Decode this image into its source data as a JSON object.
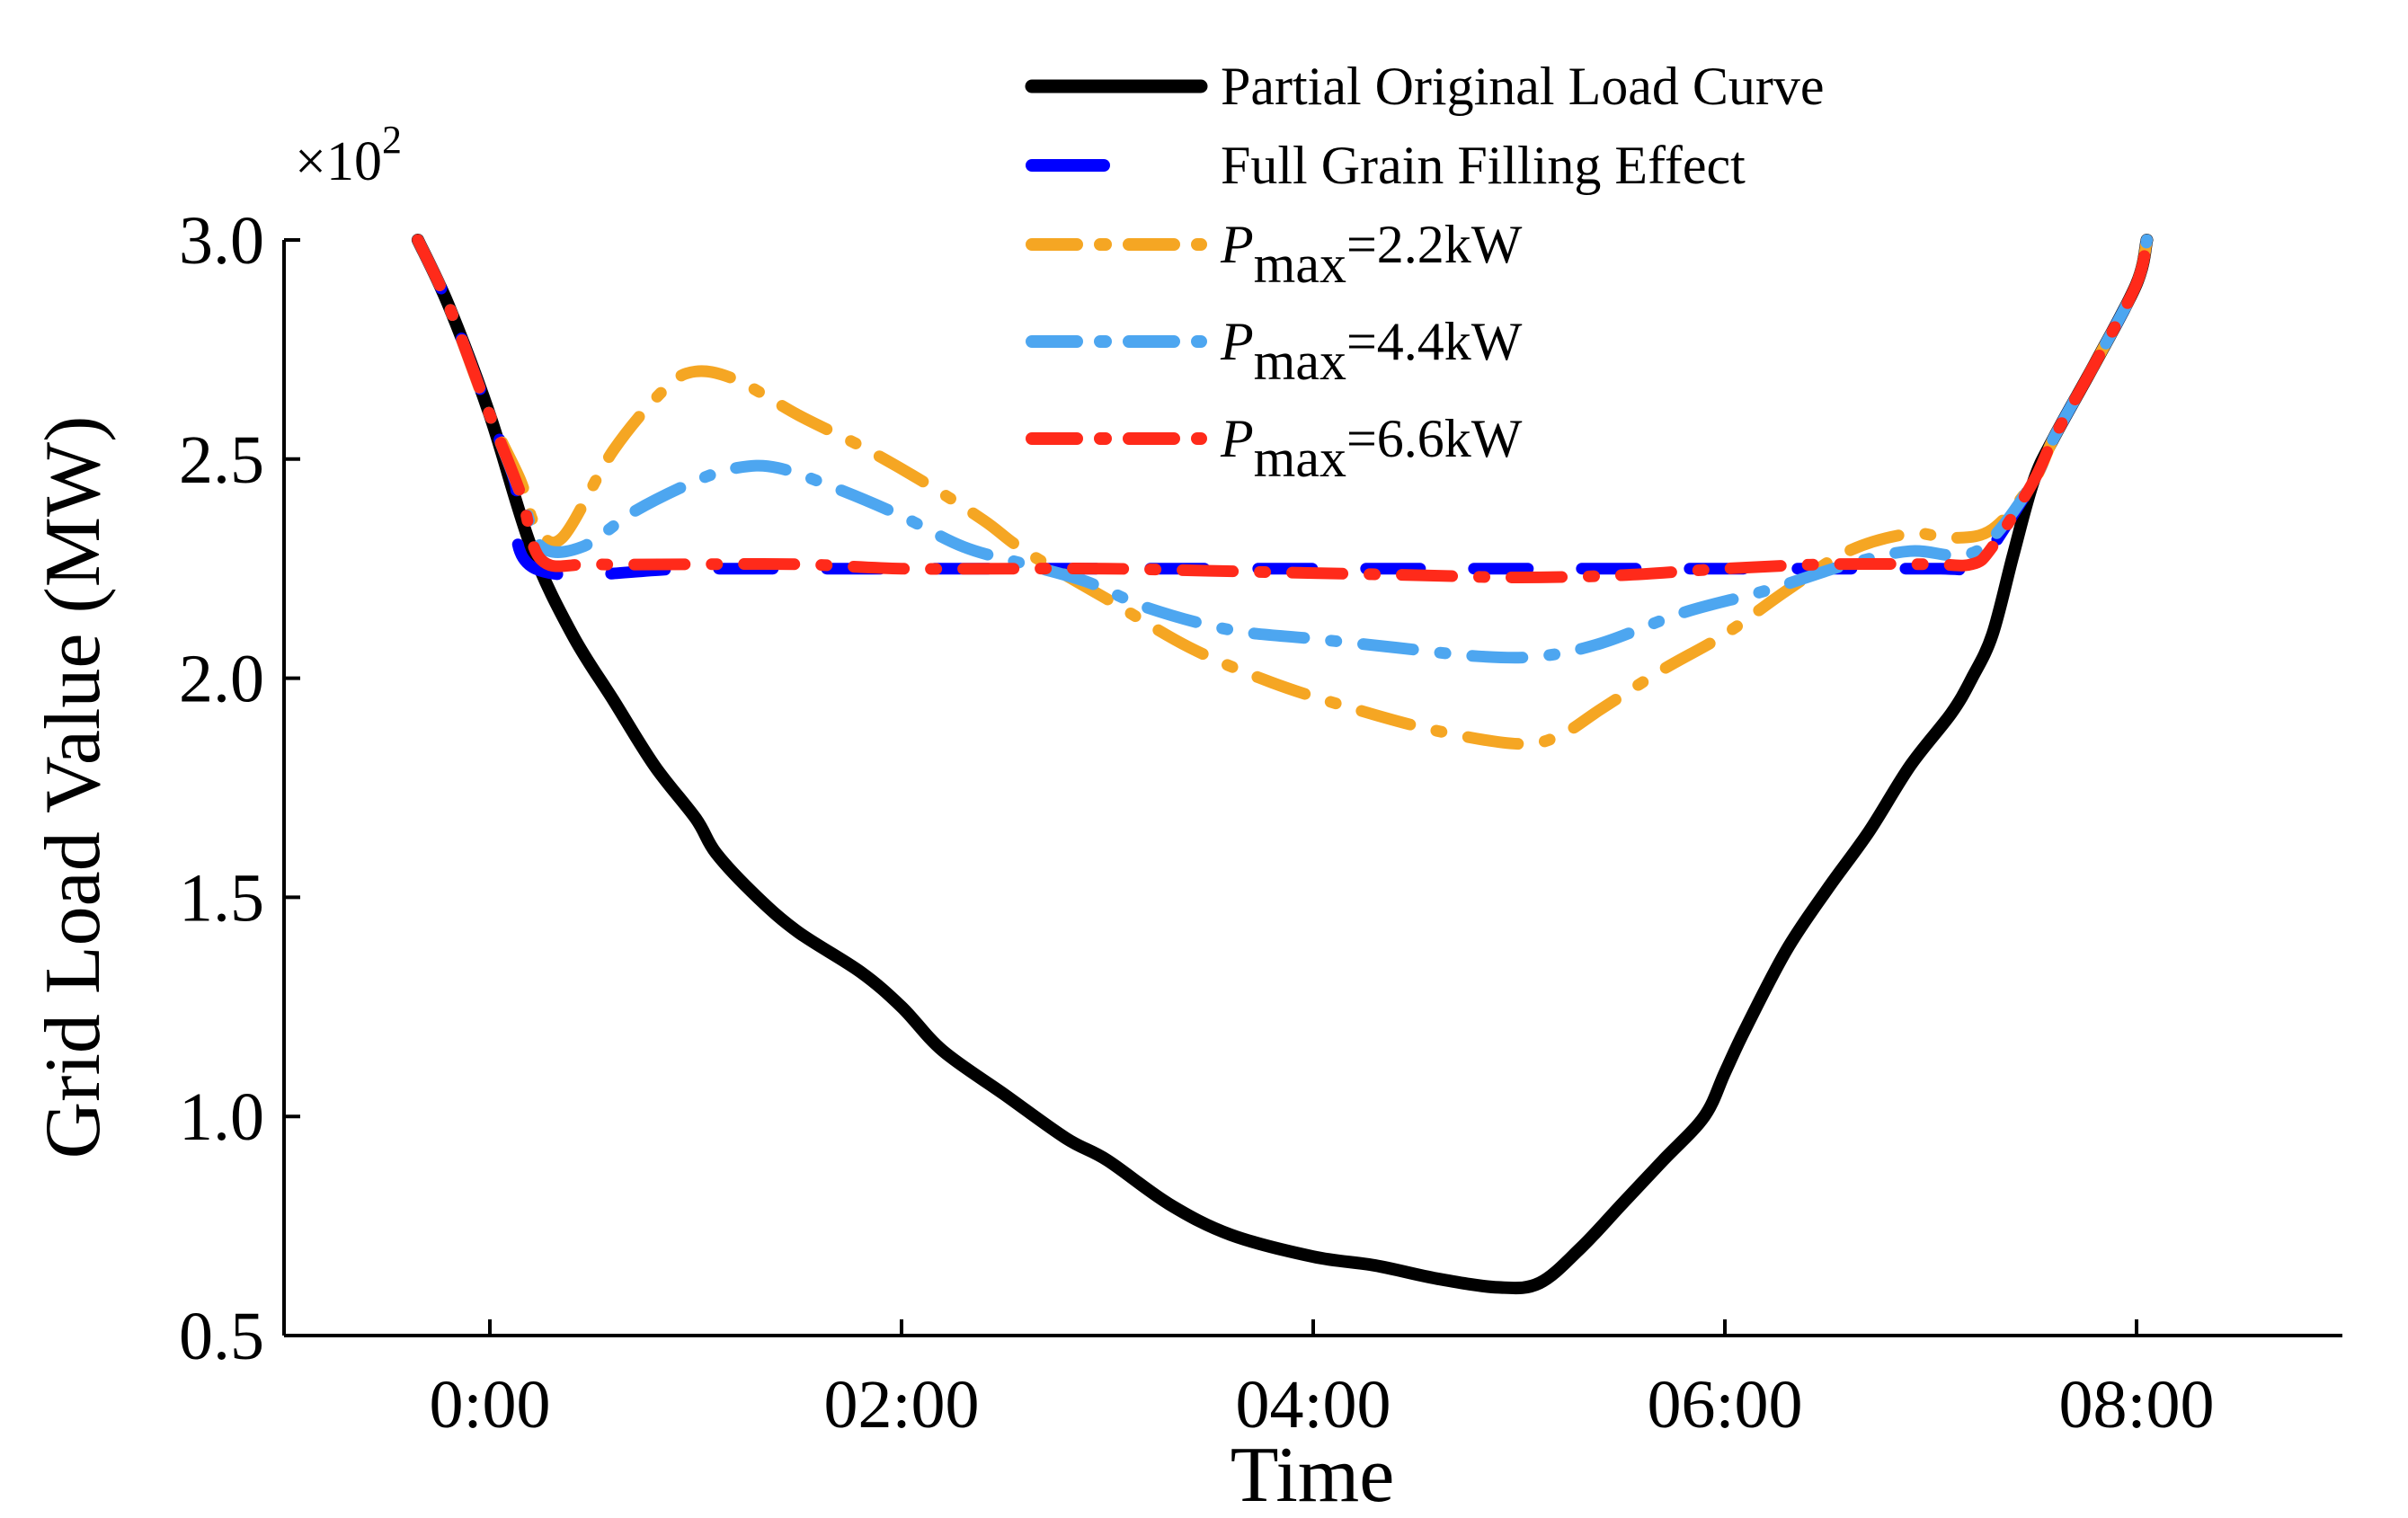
{
  "chart_data": {
    "type": "line",
    "title": "",
    "xlabel": "Time",
    "ylabel": "Grid Load Value (MW)",
    "y_multiplier": "×10",
    "y_multiplier_exp": "2",
    "xlim": [
      -1.0,
      9.0
    ],
    "ylim": [
      0.5,
      3.0
    ],
    "x_ticks": [
      {
        "value": 0,
        "label": "0:00"
      },
      {
        "value": 2,
        "label": "02:00"
      },
      {
        "value": 4,
        "label": "04:00"
      },
      {
        "value": 6,
        "label": "06:00"
      },
      {
        "value": 8,
        "label": "08:00"
      }
    ],
    "y_ticks": [
      {
        "value": 0.5,
        "label": "0.5"
      },
      {
        "value": 1.0,
        "label": "1.0"
      },
      {
        "value": 1.5,
        "label": "1.5"
      },
      {
        "value": 2.0,
        "label": "2.0"
      },
      {
        "value": 2.5,
        "label": "2.5"
      },
      {
        "value": 3.0,
        "label": "3.0"
      }
    ],
    "legend_position": "top-right",
    "series": [
      {
        "name": "Partial Original Load Curve",
        "legend_label": "Partial Original Load Curve",
        "color": "#000000",
        "style": "solid",
        "points": [
          [
            -0.35,
            3.0
          ],
          [
            -0.2,
            2.85
          ],
          [
            0.0,
            2.6
          ],
          [
            0.2,
            2.3
          ],
          [
            0.4,
            2.1
          ],
          [
            0.6,
            1.95
          ],
          [
            0.8,
            1.8
          ],
          [
            1.0,
            1.68
          ],
          [
            1.1,
            1.6
          ],
          [
            1.3,
            1.5
          ],
          [
            1.5,
            1.42
          ],
          [
            1.8,
            1.33
          ],
          [
            2.0,
            1.25
          ],
          [
            2.2,
            1.15
          ],
          [
            2.5,
            1.05
          ],
          [
            2.8,
            0.95
          ],
          [
            3.0,
            0.9
          ],
          [
            3.3,
            0.8
          ],
          [
            3.6,
            0.73
          ],
          [
            4.0,
            0.68
          ],
          [
            4.3,
            0.66
          ],
          [
            4.6,
            0.63
          ],
          [
            4.9,
            0.61
          ],
          [
            5.1,
            0.62
          ],
          [
            5.3,
            0.7
          ],
          [
            5.5,
            0.8
          ],
          [
            5.7,
            0.9
          ],
          [
            5.9,
            1.0
          ],
          [
            6.0,
            1.1
          ],
          [
            6.1,
            1.2
          ],
          [
            6.3,
            1.38
          ],
          [
            6.5,
            1.52
          ],
          [
            6.7,
            1.65
          ],
          [
            6.9,
            1.8
          ],
          [
            7.1,
            1.92
          ],
          [
            7.2,
            2.0
          ],
          [
            7.3,
            2.1
          ],
          [
            7.4,
            2.28
          ],
          [
            7.5,
            2.45
          ],
          [
            7.6,
            2.55
          ],
          [
            7.8,
            2.72
          ],
          [
            8.0,
            2.9
          ],
          [
            8.05,
            3.0
          ]
        ]
      },
      {
        "name": "Full Grain Filling Effect",
        "legend_label": "Full Grain Filling Effect",
        "color": "#0000ff",
        "style": "dashed",
        "points": [
          [
            -0.35,
            3.0
          ],
          [
            -0.2,
            2.85
          ],
          [
            0.0,
            2.6
          ],
          [
            0.12,
            2.45
          ],
          [
            0.22,
            2.25
          ],
          [
            1.0,
            2.25
          ],
          [
            2.0,
            2.25
          ],
          [
            3.0,
            2.25
          ],
          [
            4.0,
            2.25
          ],
          [
            5.0,
            2.25
          ],
          [
            6.0,
            2.25
          ],
          [
            7.0,
            2.25
          ],
          [
            7.22,
            2.25
          ],
          [
            7.3,
            2.3
          ],
          [
            7.5,
            2.45
          ],
          [
            7.6,
            2.55
          ],
          [
            7.8,
            2.72
          ],
          [
            8.0,
            2.9
          ],
          [
            8.05,
            3.0
          ]
        ]
      },
      {
        "name": "P_max=2.2kW",
        "legend_label": "P",
        "legend_sub": "max",
        "legend_suffix": "=2.2kW",
        "color": "#f5a623",
        "style": "dashdot",
        "points": [
          [
            -0.35,
            3.0
          ],
          [
            -0.2,
            2.85
          ],
          [
            0.0,
            2.6
          ],
          [
            0.15,
            2.45
          ],
          [
            0.22,
            2.35
          ],
          [
            0.35,
            2.32
          ],
          [
            0.6,
            2.52
          ],
          [
            0.85,
            2.66
          ],
          [
            1.0,
            2.7
          ],
          [
            1.2,
            2.68
          ],
          [
            1.5,
            2.6
          ],
          [
            1.8,
            2.53
          ],
          [
            2.1,
            2.45
          ],
          [
            2.4,
            2.36
          ],
          [
            2.6,
            2.29
          ],
          [
            3.0,
            2.18
          ],
          [
            3.4,
            2.07
          ],
          [
            3.8,
            1.99
          ],
          [
            4.2,
            1.93
          ],
          [
            4.6,
            1.88
          ],
          [
            5.0,
            1.85
          ],
          [
            5.2,
            1.87
          ],
          [
            5.4,
            1.93
          ],
          [
            5.7,
            2.02
          ],
          [
            6.0,
            2.1
          ],
          [
            6.3,
            2.2
          ],
          [
            6.6,
            2.29
          ],
          [
            6.9,
            2.33
          ],
          [
            7.1,
            2.32
          ],
          [
            7.3,
            2.34
          ],
          [
            7.5,
            2.45
          ],
          [
            7.6,
            2.55
          ],
          [
            7.8,
            2.72
          ],
          [
            8.0,
            2.9
          ],
          [
            8.05,
            3.0
          ]
        ]
      },
      {
        "name": "P_max=4.4kW",
        "legend_label": "P",
        "legend_sub": "max",
        "legend_suffix": "=4.4kW",
        "color": "#4da6f0",
        "style": "dashdot",
        "points": [
          [
            -0.35,
            3.0
          ],
          [
            -0.2,
            2.85
          ],
          [
            0.0,
            2.6
          ],
          [
            0.15,
            2.42
          ],
          [
            0.25,
            2.3
          ],
          [
            0.45,
            2.3
          ],
          [
            0.7,
            2.38
          ],
          [
            1.0,
            2.45
          ],
          [
            1.2,
            2.48
          ],
          [
            1.4,
            2.48
          ],
          [
            1.7,
            2.43
          ],
          [
            2.0,
            2.37
          ],
          [
            2.3,
            2.3
          ],
          [
            2.6,
            2.26
          ],
          [
            2.9,
            2.22
          ],
          [
            3.2,
            2.16
          ],
          [
            3.6,
            2.11
          ],
          [
            4.0,
            2.09
          ],
          [
            4.4,
            2.07
          ],
          [
            4.8,
            2.05
          ],
          [
            5.1,
            2.05
          ],
          [
            5.4,
            2.08
          ],
          [
            5.8,
            2.15
          ],
          [
            6.2,
            2.2
          ],
          [
            6.6,
            2.26
          ],
          [
            6.9,
            2.29
          ],
          [
            7.15,
            2.28
          ],
          [
            7.3,
            2.32
          ],
          [
            7.5,
            2.45
          ],
          [
            7.6,
            2.55
          ],
          [
            7.8,
            2.72
          ],
          [
            8.0,
            2.9
          ],
          [
            8.05,
            3.0
          ]
        ]
      },
      {
        "name": "P_max=6.6kW",
        "legend_label": "P",
        "legend_sub": "max",
        "legend_suffix": "=6.6kW",
        "color": "#ff2a1a",
        "style": "dashdot",
        "points": [
          [
            -0.35,
            3.0
          ],
          [
            -0.2,
            2.85
          ],
          [
            0.0,
            2.6
          ],
          [
            0.15,
            2.42
          ],
          [
            0.25,
            2.27
          ],
          [
            0.5,
            2.26
          ],
          [
            1.0,
            2.26
          ],
          [
            1.5,
            2.26
          ],
          [
            2.0,
            2.25
          ],
          [
            2.5,
            2.25
          ],
          [
            3.0,
            2.25
          ],
          [
            3.5,
            2.245
          ],
          [
            4.0,
            2.24
          ],
          [
            4.5,
            2.235
          ],
          [
            5.0,
            2.23
          ],
          [
            5.5,
            2.235
          ],
          [
            6.0,
            2.25
          ],
          [
            6.5,
            2.26
          ],
          [
            7.0,
            2.26
          ],
          [
            7.2,
            2.26
          ],
          [
            7.3,
            2.3
          ],
          [
            7.5,
            2.45
          ],
          [
            7.6,
            2.55
          ],
          [
            7.8,
            2.72
          ],
          [
            8.0,
            2.9
          ],
          [
            8.05,
            3.0
          ]
        ]
      }
    ]
  }
}
